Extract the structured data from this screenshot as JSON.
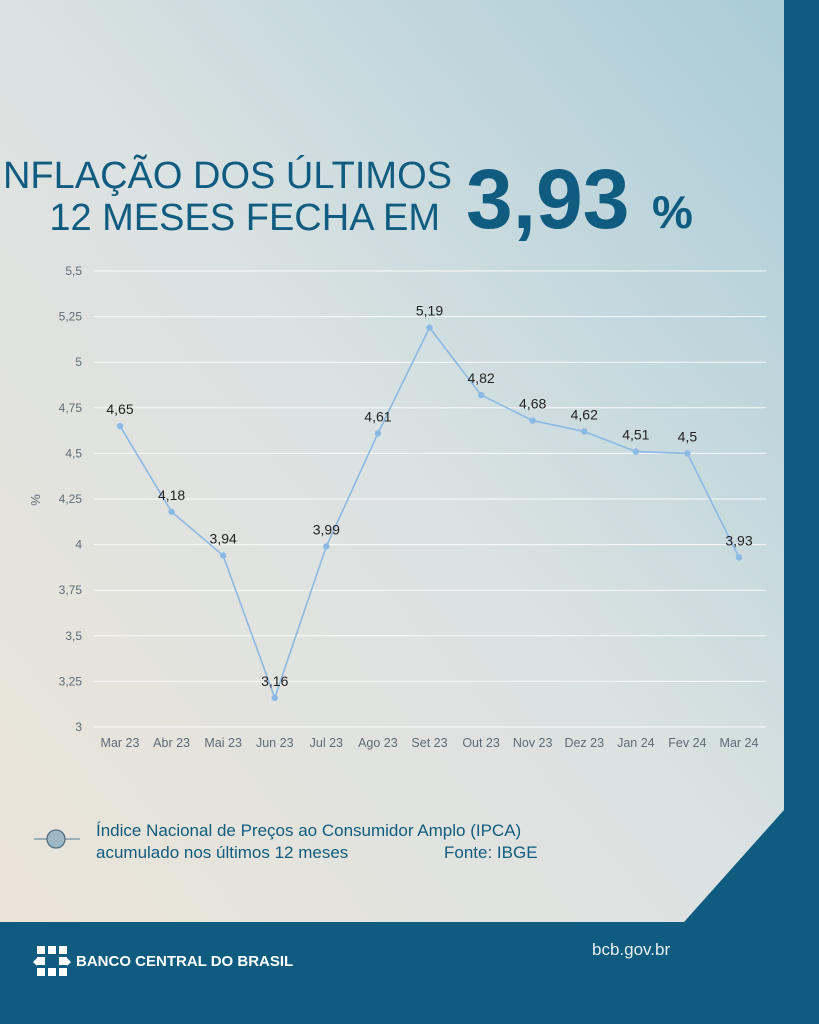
{
  "header": {
    "title_line1": "INFLAÇÃO DOS ÚLTIMOS",
    "title_line2": "12 MESES  FECHA EM",
    "big_number": "3,93",
    "big_unit": "%"
  },
  "colors": {
    "primary": "#0f5c80",
    "line": "#8ab9e6",
    "marker_legend": "#9fb8c6",
    "grid": "#ffffff",
    "tick": "#5f6b74"
  },
  "legend": {
    "line1": "Índice Nacional de Preços ao Consumidor Amplo (IPCA)",
    "line2": "acumulado nos últimos 12 meses",
    "source": "Fonte: IBGE"
  },
  "footer": {
    "brand": "BANCO CENTRAL DO BRASIL",
    "url": "bcb.gov.br",
    "logo_icon": "bcb-logo-icon"
  },
  "chart_data": {
    "type": "line",
    "categories": [
      "Mar 23",
      "Abr 23",
      "Mai 23",
      "Jun 23",
      "Jul 23",
      "Ago 23",
      "Set 23",
      "Out 23",
      "Nov 23",
      "Dez 23",
      "Jan 24",
      "Fev 24",
      "Mar 24"
    ],
    "values": [
      4.65,
      4.18,
      3.94,
      3.16,
      3.99,
      4.61,
      5.19,
      4.82,
      4.68,
      4.62,
      4.51,
      4.5,
      3.93
    ],
    "data_labels": [
      "4,65",
      "4,18",
      "3,94",
      "3,16",
      "3,99",
      "4,61",
      "5,19",
      "4,82",
      "4,68",
      "4,62",
      "4,51",
      "4,5",
      "3,93"
    ],
    "y_ticks": [
      "3",
      "3,25",
      "3,5",
      "3,75",
      "4",
      "4,25",
      "4,5",
      "4,75",
      "5",
      "5,25",
      "5,5"
    ],
    "y_tick_values": [
      3,
      3.25,
      3.5,
      3.75,
      4,
      4.25,
      4.5,
      4.75,
      5,
      5.25,
      5.5
    ],
    "ylim": [
      3,
      5.5
    ],
    "ylabel": "%",
    "xlabel": "",
    "grid": true,
    "legend_position": "bottom-left"
  }
}
